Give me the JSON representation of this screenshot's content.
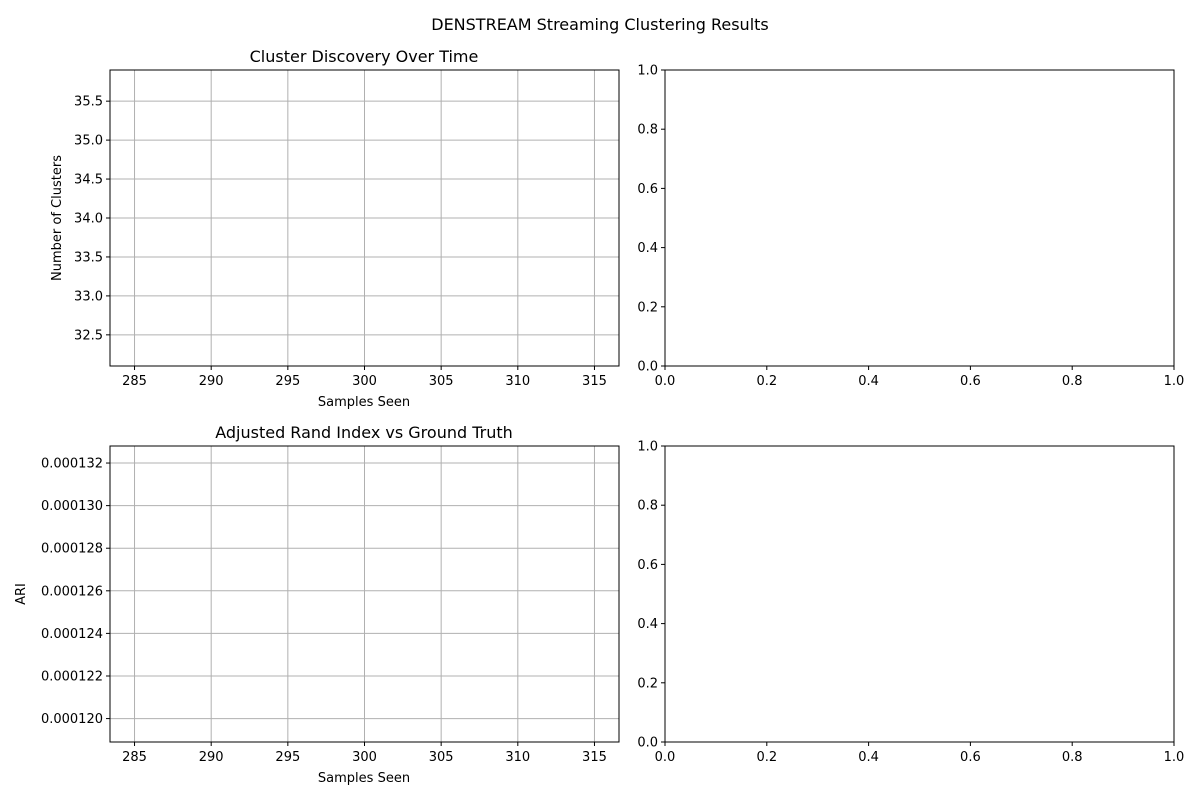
{
  "figure": {
    "suptitle": "DENSTREAM Streaming Clustering Results"
  },
  "chart_data": [
    {
      "type": "line",
      "title": "Cluster Discovery Over Time",
      "xlabel": "Samples Seen",
      "ylabel": "Number of Clusters",
      "xlim": [
        283.4,
        316.6
      ],
      "ylim": [
        32.1,
        35.9
      ],
      "xticks": [
        285,
        290,
        295,
        300,
        305,
        310,
        315
      ],
      "yticks": [
        32.5,
        33.0,
        33.5,
        34.0,
        34.5,
        35.0,
        35.5
      ],
      "ytick_decimals": 1,
      "xtick_decimals": 0,
      "grid": true,
      "series": []
    },
    {
      "type": "line",
      "title": "",
      "xlabel": "",
      "ylabel": "",
      "xlim": [
        0,
        1
      ],
      "ylim": [
        0,
        1
      ],
      "xticks": [
        0.0,
        0.2,
        0.4,
        0.6,
        0.8,
        1.0
      ],
      "yticks": [
        0.0,
        0.2,
        0.4,
        0.6,
        0.8,
        1.0
      ],
      "ytick_decimals": 1,
      "xtick_decimals": 1,
      "grid": false,
      "series": []
    },
    {
      "type": "line",
      "title": "Adjusted Rand Index vs Ground Truth",
      "xlabel": "Samples Seen",
      "ylabel": "ARI",
      "xlim": [
        283.4,
        316.6
      ],
      "ylim": [
        0.0001189,
        0.0001328
      ],
      "xticks": [
        285,
        290,
        295,
        300,
        305,
        310,
        315
      ],
      "yticks": [
        0.00012,
        0.000122,
        0.000124,
        0.000126,
        0.000128,
        0.00013,
        0.000132
      ],
      "ytick_decimals": 6,
      "xtick_decimals": 0,
      "grid": true,
      "series": []
    },
    {
      "type": "line",
      "title": "",
      "xlabel": "",
      "ylabel": "",
      "xlim": [
        0,
        1
      ],
      "ylim": [
        0,
        1
      ],
      "xticks": [
        0.0,
        0.2,
        0.4,
        0.6,
        0.8,
        1.0
      ],
      "yticks": [
        0.0,
        0.2,
        0.4,
        0.6,
        0.8,
        1.0
      ],
      "ytick_decimals": 1,
      "xtick_decimals": 1,
      "grid": false,
      "series": []
    }
  ]
}
